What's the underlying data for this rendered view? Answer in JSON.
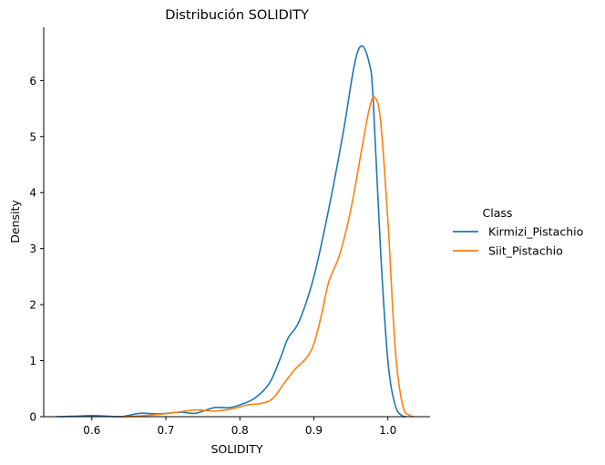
{
  "chart_data": {
    "type": "line",
    "title": "Distribución SOLIDITY",
    "xlabel": "SOLIDITY",
    "ylabel": "Density",
    "xlim": [
      0.535,
      1.057
    ],
    "ylim": [
      0,
      6.95
    ],
    "x_ticks": [
      0.6,
      0.7,
      0.8,
      0.9,
      1.0
    ],
    "x_tick_labels": [
      "0.6",
      "0.7",
      "0.8",
      "0.9",
      "1.0"
    ],
    "y_ticks": [
      0,
      1,
      2,
      3,
      4,
      5,
      6
    ],
    "y_tick_labels": [
      "0",
      "1",
      "2",
      "3",
      "4",
      "5",
      "6"
    ],
    "grid": false,
    "legend": {
      "title": "Class",
      "placement": "right"
    },
    "series": [
      {
        "name": "Kirmizi_Pistachio",
        "color": "#1f77b4",
        "points": [
          [
            0.552,
            0.0
          ],
          [
            0.58,
            0.01
          ],
          [
            0.6,
            0.02
          ],
          [
            0.62,
            0.01
          ],
          [
            0.64,
            0.0
          ],
          [
            0.665,
            0.06
          ],
          [
            0.69,
            0.05
          ],
          [
            0.72,
            0.08
          ],
          [
            0.74,
            0.06
          ],
          [
            0.765,
            0.16
          ],
          [
            0.785,
            0.16
          ],
          [
            0.8,
            0.21
          ],
          [
            0.82,
            0.33
          ],
          [
            0.84,
            0.6
          ],
          [
            0.855,
            1.05
          ],
          [
            0.865,
            1.4
          ],
          [
            0.88,
            1.7
          ],
          [
            0.9,
            2.5
          ],
          [
            0.92,
            3.7
          ],
          [
            0.94,
            5.1
          ],
          [
            0.955,
            6.3
          ],
          [
            0.965,
            6.62
          ],
          [
            0.975,
            6.3
          ],
          [
            0.98,
            5.7
          ],
          [
            0.99,
            3.0
          ],
          [
            1.0,
            1.0
          ],
          [
            1.01,
            0.2
          ],
          [
            1.02,
            0.01
          ],
          [
            1.025,
            0.0
          ]
        ]
      },
      {
        "name": "Siit_Pistachio",
        "color": "#ff7f0e",
        "points": [
          [
            0.64,
            0.0
          ],
          [
            0.66,
            0.01
          ],
          [
            0.69,
            0.04
          ],
          [
            0.71,
            0.07
          ],
          [
            0.74,
            0.12
          ],
          [
            0.765,
            0.1
          ],
          [
            0.79,
            0.14
          ],
          [
            0.81,
            0.21
          ],
          [
            0.83,
            0.24
          ],
          [
            0.845,
            0.33
          ],
          [
            0.86,
            0.6
          ],
          [
            0.875,
            0.85
          ],
          [
            0.89,
            1.05
          ],
          [
            0.9,
            1.3
          ],
          [
            0.91,
            1.8
          ],
          [
            0.92,
            2.4
          ],
          [
            0.935,
            2.9
          ],
          [
            0.95,
            3.7
          ],
          [
            0.965,
            4.8
          ],
          [
            0.975,
            5.5
          ],
          [
            0.982,
            5.7
          ],
          [
            0.99,
            5.3
          ],
          [
            1.0,
            3.5
          ],
          [
            1.01,
            1.2
          ],
          [
            1.02,
            0.2
          ],
          [
            1.03,
            0.02
          ],
          [
            1.035,
            0.0
          ]
        ]
      }
    ]
  }
}
